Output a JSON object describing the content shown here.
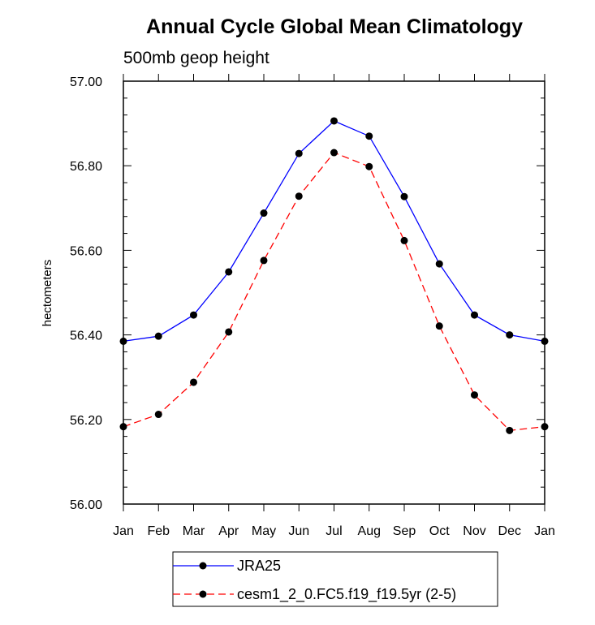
{
  "chart_data": {
    "type": "line",
    "title": "Annual Cycle Global Mean Climatology",
    "subtitle": "500mb geop height",
    "ylabel": "hectometers",
    "xlabel": "",
    "categories": [
      "Jan",
      "Feb",
      "Mar",
      "Apr",
      "May",
      "Jun",
      "Jul",
      "Aug",
      "Sep",
      "Oct",
      "Nov",
      "Dec",
      "Jan"
    ],
    "ylim": [
      56.0,
      57.0
    ],
    "yticks": [
      "56.00",
      "56.20",
      "56.40",
      "56.60",
      "56.80",
      "57.00"
    ],
    "series": [
      {
        "name": "JRA25",
        "color": "#0000ff",
        "dash": "solid",
        "values": [
          56.385,
          56.397,
          56.447,
          56.549,
          56.688,
          56.829,
          56.906,
          56.87,
          56.727,
          56.568,
          56.447,
          56.4,
          56.385
        ]
      },
      {
        "name": "cesm1_2_0.FC5.f19_f19.5yr (2-5)",
        "color": "#ff0000",
        "dash": "dashed",
        "values": [
          56.183,
          56.212,
          56.288,
          56.407,
          56.576,
          56.728,
          56.831,
          56.798,
          56.623,
          56.421,
          56.258,
          56.174,
          56.183
        ]
      }
    ],
    "legend_position": "bottom",
    "grid": false
  }
}
